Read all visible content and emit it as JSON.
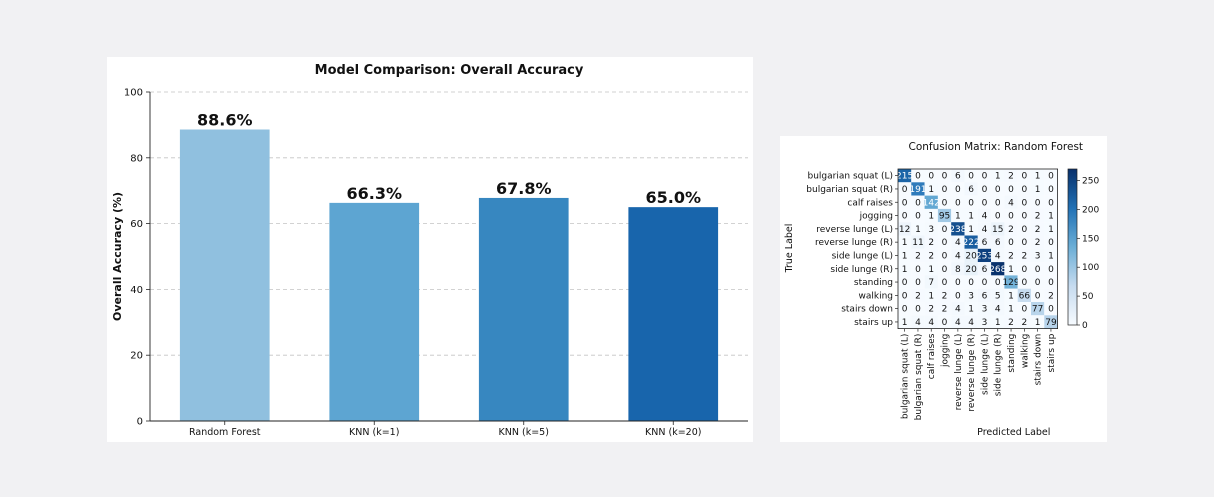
{
  "chart_data": [
    {
      "type": "bar",
      "title": "Model Comparison: Overall Accuracy",
      "xlabel": "",
      "ylabel": "Overall Accuracy (%)",
      "ylim": [
        0,
        100
      ],
      "yticks": [
        0,
        20,
        40,
        60,
        80,
        100
      ],
      "grid": "y dashed",
      "categories": [
        "Random Forest",
        "KNN (k=1)",
        "KNN (k=5)",
        "KNN (k=20)"
      ],
      "values": [
        88.6,
        66.3,
        67.8,
        65.0
      ],
      "data_labels": [
        "88.6%",
        "66.3%",
        "67.8%",
        "65.0%"
      ],
      "colors": [
        "#90c0df",
        "#5da5d2",
        "#3787c0",
        "#1865ac"
      ]
    },
    {
      "type": "heatmap",
      "title": "Confusion Matrix: Random Forest",
      "xlabel": "Predicted Label",
      "ylabel": "True Label",
      "colormap": "Blues",
      "value_range": [
        0,
        270
      ],
      "colorbar_ticks": [
        0,
        50,
        100,
        150,
        200,
        250
      ],
      "labels": [
        "bulgarian squat (L)",
        "bulgarian squat (R)",
        "calf raises",
        "jogging",
        "reverse lunge (L)",
        "reverse lunge (R)",
        "side lunge (L)",
        "side lunge (R)",
        "standing",
        "walking",
        "stairs down",
        "stairs up"
      ],
      "matrix": [
        [
          215,
          0,
          0,
          0,
          6,
          0,
          0,
          1,
          2,
          0,
          1,
          0
        ],
        [
          0,
          191,
          1,
          0,
          0,
          6,
          0,
          0,
          0,
          0,
          1,
          0
        ],
        [
          0,
          0,
          142,
          0,
          0,
          0,
          0,
          0,
          4,
          0,
          0,
          0
        ],
        [
          0,
          0,
          1,
          95,
          1,
          1,
          4,
          0,
          0,
          0,
          2,
          1
        ],
        [
          12,
          1,
          3,
          0,
          238,
          1,
          4,
          15,
          2,
          0,
          2,
          1
        ],
        [
          1,
          11,
          2,
          0,
          4,
          222,
          6,
          6,
          0,
          0,
          2,
          0
        ],
        [
          1,
          2,
          2,
          0,
          4,
          20,
          253,
          4,
          2,
          2,
          3,
          1
        ],
        [
          1,
          0,
          1,
          0,
          8,
          20,
          6,
          268,
          1,
          0,
          0,
          0
        ],
        [
          0,
          0,
          7,
          0,
          0,
          0,
          0,
          0,
          129,
          0,
          0,
          0
        ],
        [
          0,
          2,
          1,
          2,
          0,
          3,
          6,
          5,
          1,
          66,
          0,
          2
        ],
        [
          0,
          0,
          2,
          2,
          4,
          1,
          3,
          4,
          1,
          0,
          77,
          0
        ],
        [
          1,
          4,
          4,
          0,
          4,
          4,
          3,
          1,
          2,
          2,
          1,
          79
        ]
      ]
    }
  ]
}
